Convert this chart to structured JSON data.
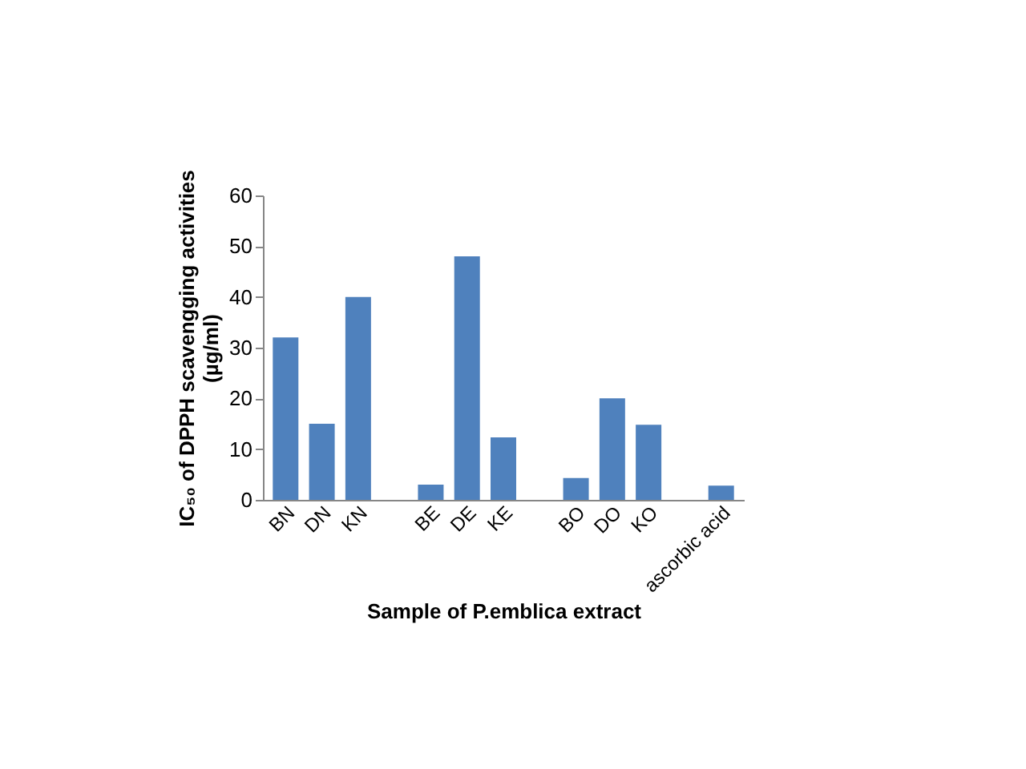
{
  "chart_data": {
    "type": "bar",
    "xlabel": "Sample of P.emblica extract",
    "ylabel": "IC₅₀ of DPPH scavengging activities (µg/ml)",
    "categories": [
      "BN",
      "DN",
      "KN",
      null,
      "BE",
      "DE",
      "KE",
      null,
      "BO",
      "DO",
      "KO",
      null,
      "ascorbic acid"
    ],
    "values": [
      32,
      15,
      40,
      null,
      3,
      48,
      12.3,
      null,
      4.3,
      20,
      14.8,
      null,
      2.8
    ],
    "color": "#4f81bd",
    "ylim": [
      0,
      60
    ],
    "yticks": [
      0,
      10,
      20,
      30,
      40,
      50,
      60
    ],
    "grid": false
  }
}
